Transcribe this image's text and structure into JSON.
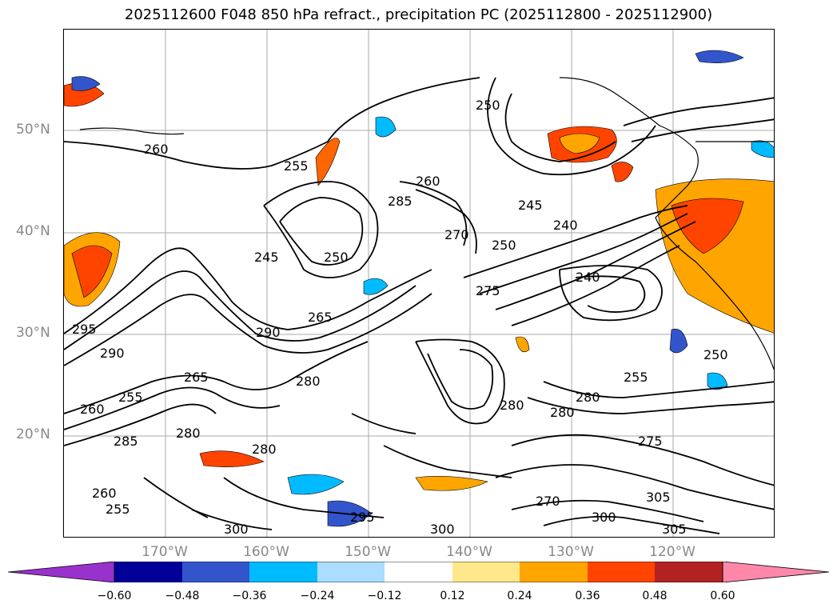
{
  "title": "2025112600 F048 850 hPa refract., precipitation PC (2025112800 - 2025112900)",
  "lat_labels": [
    "50°N",
    "40°N",
    "30°N",
    "20°N"
  ],
  "lon_labels": [
    "170°W",
    "160°W",
    "150°W",
    "140°W",
    "130°W",
    "120°W"
  ],
  "contour_labels": [
    "260",
    "255",
    "250",
    "245",
    "285",
    "260",
    "245",
    "240",
    "250",
    "270",
    "250",
    "275",
    "240",
    "280",
    "290",
    "265",
    "250",
    "255",
    "280",
    "280",
    "300",
    "305",
    "270",
    "300",
    "295",
    "300",
    "305",
    "275",
    "285",
    "265",
    "290",
    "255",
    "260",
    "280",
    "260",
    "255",
    "295",
    "280",
    "280"
  ],
  "colorbar": {
    "ticks": [
      "−0.60",
      "−0.48",
      "−0.36",
      "−0.24",
      "−0.12",
      "0.12",
      "0.24",
      "0.36",
      "0.48",
      "0.60"
    ],
    "colors": [
      "#9932cc",
      "#000099",
      "#3355cc",
      "#00bbff",
      "#aaddff",
      "#ffffff",
      "#ffe88a",
      "#ffa500",
      "#ff4400",
      "#b22222",
      "#ff88aa"
    ]
  }
}
